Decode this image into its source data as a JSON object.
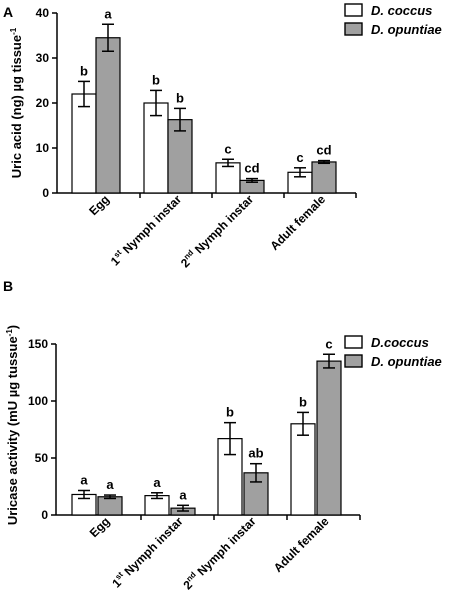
{
  "colors": {
    "coccus_fill": "#ffffff",
    "opuntiae_fill": "#a0a0a0",
    "outline": "#000000"
  },
  "chart_data": [
    {
      "panel": "A",
      "type": "bar",
      "ylabel": "Uric acid (ng) µg tissue",
      "ylabel_sup": "-1",
      "ylim": [
        0,
        40
      ],
      "yticks": [
        0,
        10,
        20,
        30,
        40
      ],
      "categories": [
        "Egg",
        "1st Nymph instar",
        "2nd Nymph instar",
        "Adult female"
      ],
      "category_parts": [
        {
          "pre": "Egg",
          "sup": "",
          "post": ""
        },
        {
          "pre": "1",
          "sup": "st",
          "post": " Nymph instar"
        },
        {
          "pre": "2",
          "sup": "nd",
          "post": " Nymph instar"
        },
        {
          "pre": "Adult female",
          "sup": "",
          "post": ""
        }
      ],
      "series": [
        {
          "name": "D. coccus",
          "values": [
            22,
            20,
            6.7,
            4.6
          ],
          "errors": [
            2.8,
            2.8,
            0.8,
            1.0
          ],
          "letters": [
            "b",
            "b",
            "c",
            "c"
          ]
        },
        {
          "name": "D. opuntiae",
          "values": [
            34.5,
            16.3,
            2.8,
            6.9
          ],
          "errors": [
            3.0,
            2.5,
            0.4,
            0.3
          ],
          "letters": [
            "a",
            "b",
            "cd",
            "cd"
          ]
        }
      ],
      "grid": false,
      "legend_position": "top-right"
    },
    {
      "panel": "B",
      "type": "bar",
      "ylabel": "Uricase activity (mU µg tussue",
      "ylabel_sup": "-1",
      "ylabel_close": ")",
      "ylim": [
        0,
        150
      ],
      "yticks": [
        0,
        50,
        100,
        150
      ],
      "categories": [
        "Egg",
        "1st Nymph instar",
        "2nd Nymph instar",
        "Adult female"
      ],
      "category_parts": [
        {
          "pre": "Egg",
          "sup": "",
          "post": ""
        },
        {
          "pre": "1",
          "sup": "st",
          "post": " Nymph instar"
        },
        {
          "pre": "2",
          "sup": "nd",
          "post": " Nymph instar"
        },
        {
          "pre": "Adult female",
          "sup": "",
          "post": ""
        }
      ],
      "series": [
        {
          "name": "D.coccus",
          "values": [
            18,
            17,
            67,
            80
          ],
          "errors": [
            3.5,
            2.5,
            14,
            10
          ],
          "letters": [
            "a",
            "a",
            "b",
            "b"
          ]
        },
        {
          "name": "D. opuntiae",
          "values": [
            16,
            6,
            37,
            135
          ],
          "errors": [
            1.5,
            2.5,
            8,
            6
          ],
          "letters": [
            "a",
            "a",
            "ab",
            "c"
          ]
        }
      ],
      "grid": false,
      "legend_position": "top-right"
    }
  ]
}
